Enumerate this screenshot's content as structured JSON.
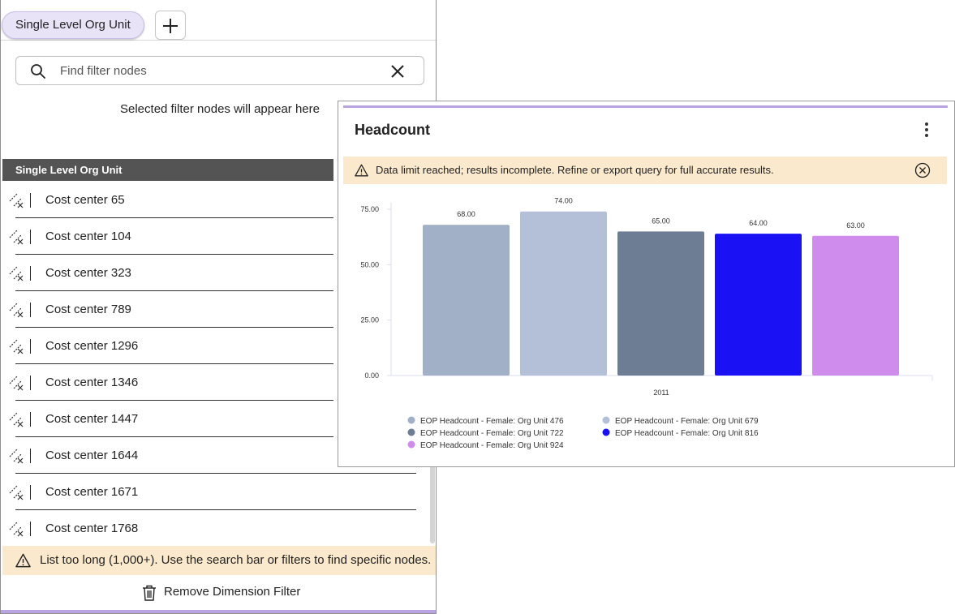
{
  "filter_panel": {
    "tab_label": "Single Level Org Unit",
    "search": {
      "placeholder": "Find filter nodes",
      "value": ""
    },
    "selected_hint": "Selected filter nodes will appear here",
    "list_header": "Single Level Org Unit",
    "nodes": [
      "Cost center 65",
      "Cost center 104",
      "Cost center 323",
      "Cost center 789",
      "Cost center 1296",
      "Cost center 1346",
      "Cost center 1447",
      "Cost center 1644",
      "Cost center 1671",
      "Cost center 1768"
    ],
    "list_warning": "List too long (1,000+). Use the search bar or filters to find specific nodes.",
    "remove_label": "Remove Dimension Filter"
  },
  "chart_card": {
    "title": "Headcount",
    "warning": "Data limit reached; results incomplete. Refine or export query for full accurate results.",
    "chart_data": {
      "type": "bar",
      "categories": [
        "2011"
      ],
      "ylim": [
        0,
        75
      ],
      "yticks": [
        "0.00",
        "25.00",
        "50.00",
        "75.00"
      ],
      "ytick_values": [
        0,
        25,
        50,
        75
      ],
      "grid": false,
      "legend": "bottom",
      "series": [
        {
          "name": "EOP Headcount - Female: Org Unit 476",
          "values": [
            68
          ],
          "label": "68.00",
          "color": "#a2b0c7"
        },
        {
          "name": "EOP Headcount - Female: Org Unit 679",
          "values": [
            74
          ],
          "label": "74.00",
          "color": "#b3c0d7"
        },
        {
          "name": "EOP Headcount - Female: Org Unit 722",
          "values": [
            65
          ],
          "label": "65.00",
          "color": "#6d7d94"
        },
        {
          "name": "EOP Headcount - Female: Org Unit 816",
          "values": [
            64
          ],
          "label": "64.00",
          "color": "#1a12f5"
        },
        {
          "name": "EOP Headcount - Female: Org Unit 924",
          "values": [
            63
          ],
          "label": "63.00",
          "color": "#cf8cec"
        }
      ]
    }
  }
}
